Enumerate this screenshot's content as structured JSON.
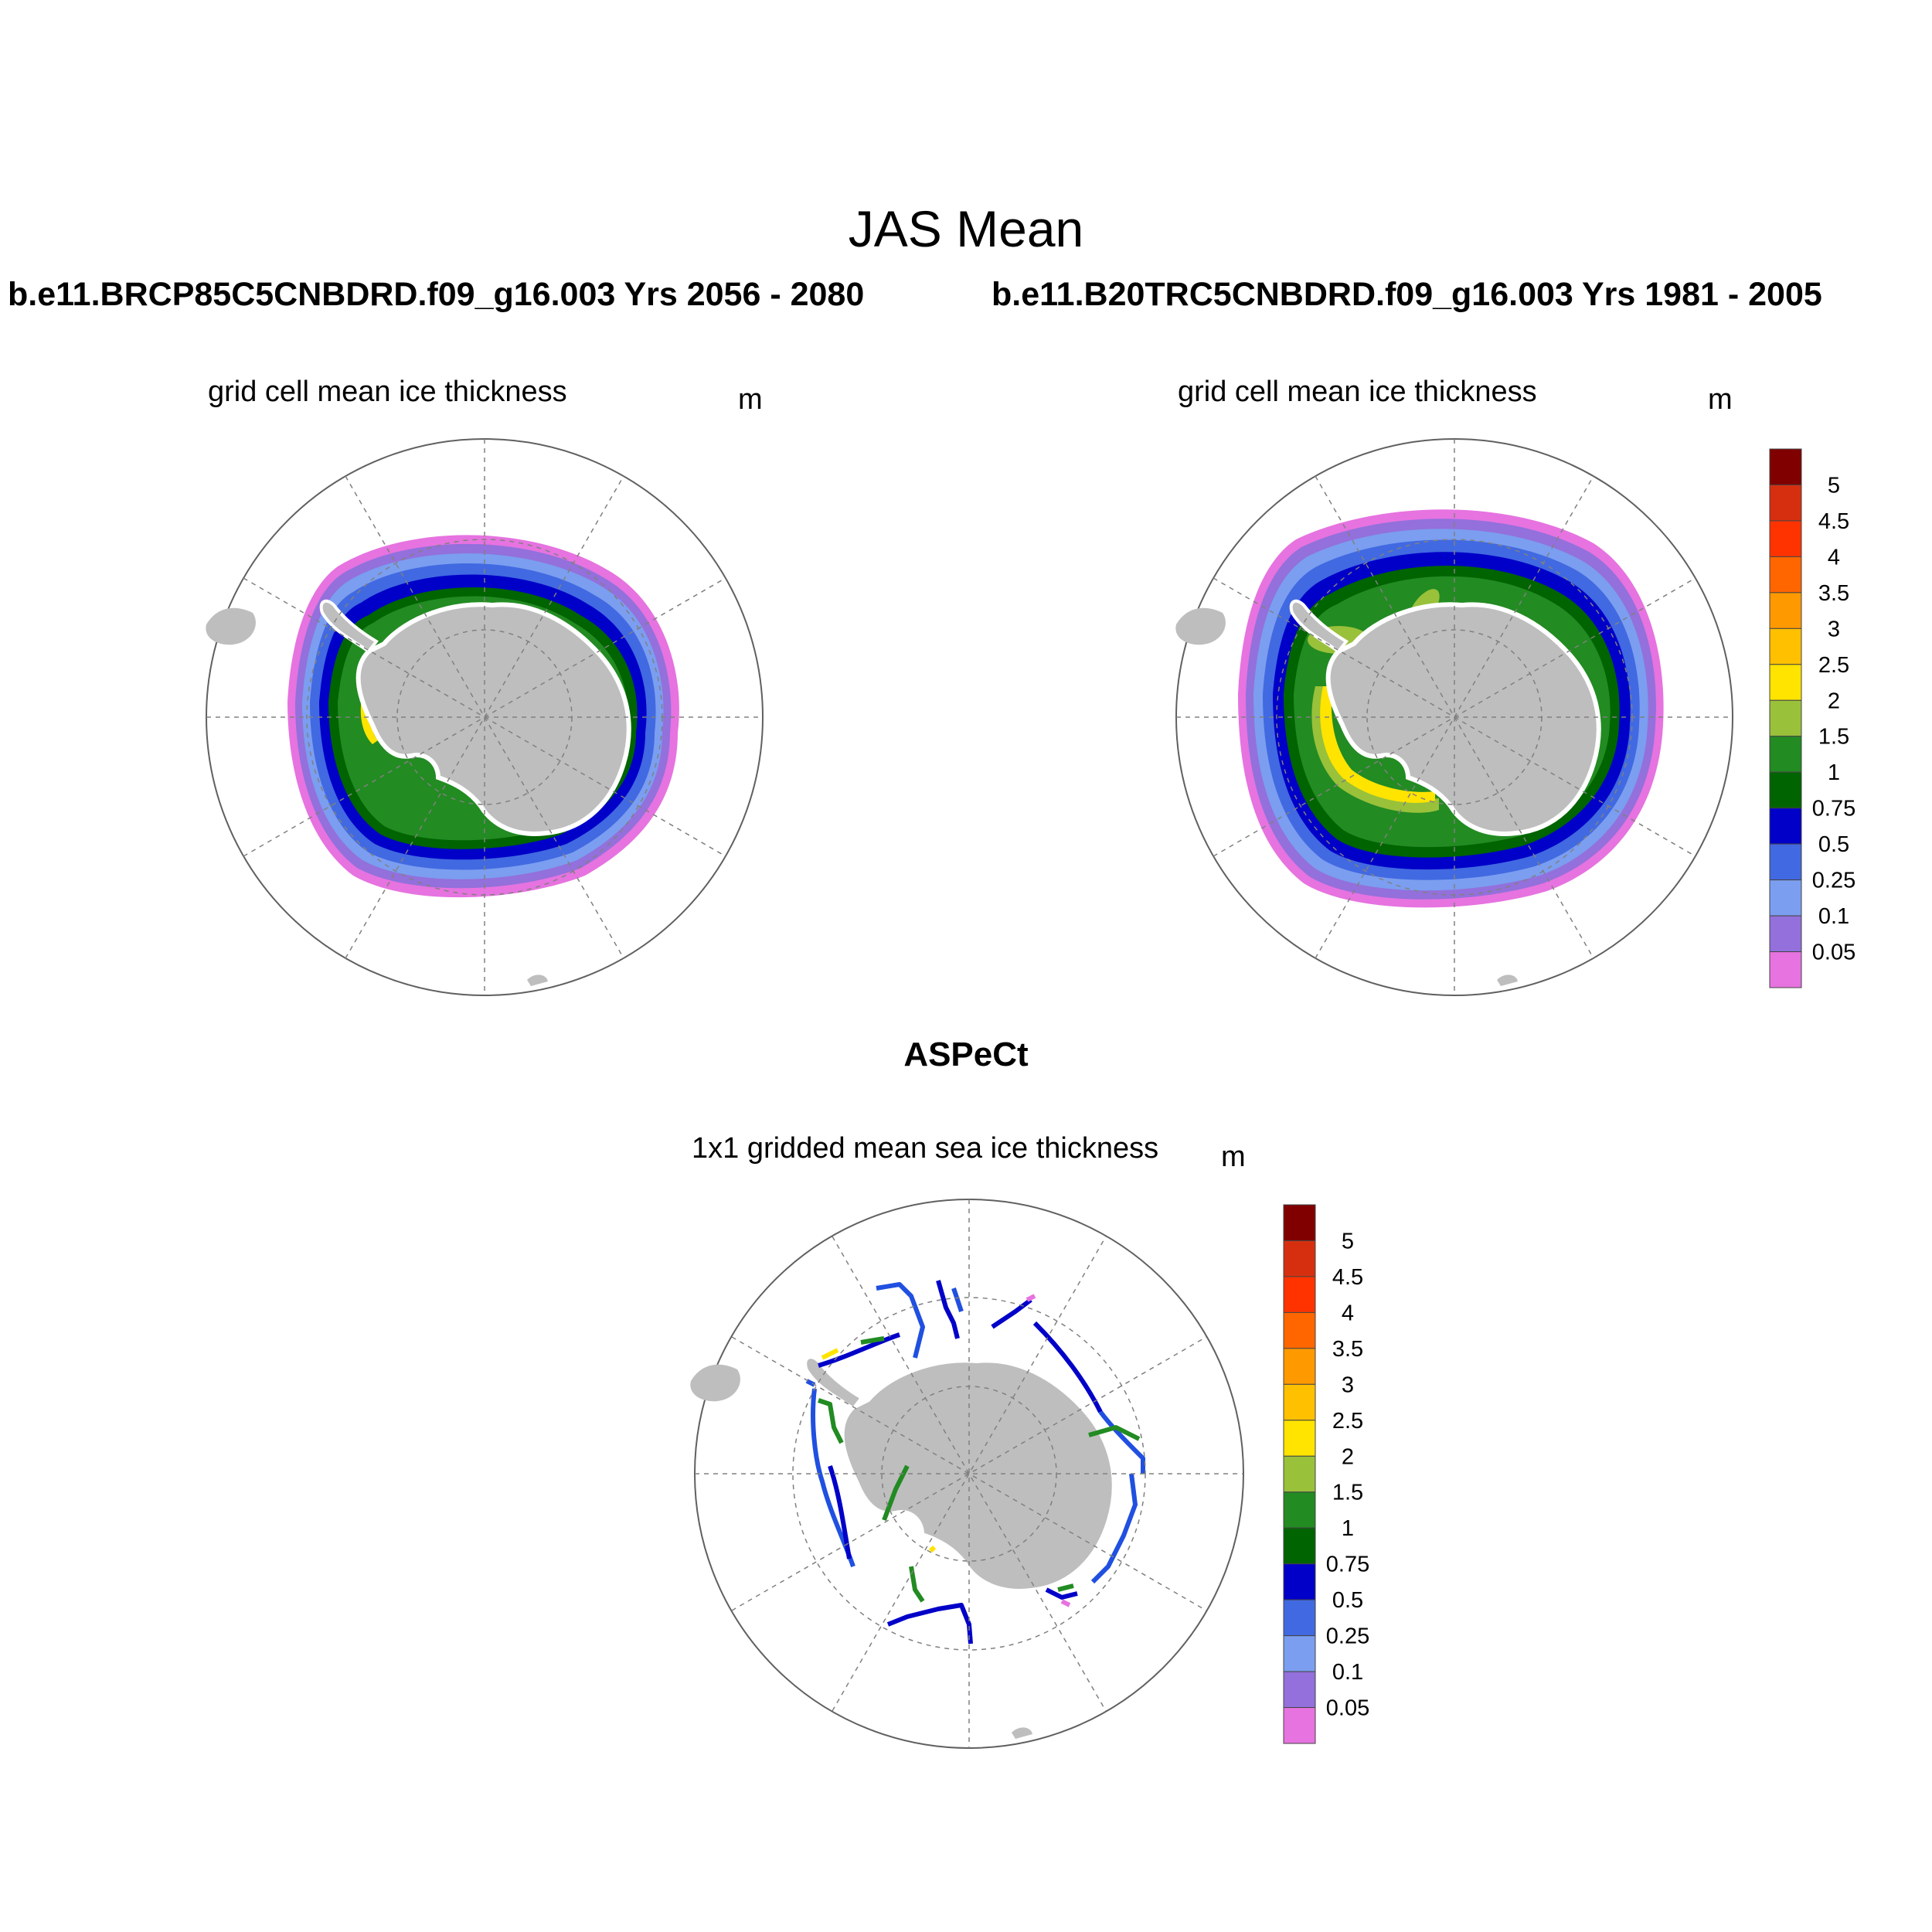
{
  "title": "JAS Mean",
  "runs": {
    "left": "b.e11.BRCP85C5CNBDRD.f09_g16.003  Yrs 2056 - 2080",
    "right": "b.e11.B20TRC5CNBDRD.f09_g16.003  Yrs 1981 - 2005"
  },
  "panels": {
    "top_left": {
      "title": "grid cell mean ice thickness",
      "unit": "m"
    },
    "top_right": {
      "title": "grid cell mean ice thickness",
      "unit": "m"
    },
    "bottom": {
      "heading": "ASPeCt",
      "title": "1x1 gridded mean sea ice thickness",
      "unit": "m"
    }
  },
  "colorbar": {
    "labels": [
      "5",
      "4.5",
      "4",
      "3.5",
      "3",
      "2.5",
      "2",
      "1.5",
      "1",
      "0.75",
      "0.5",
      "0.25",
      "0.1",
      "0.05"
    ],
    "colors": [
      "#800000",
      "#d62f10",
      "#ff3300",
      "#ff6600",
      "#ff9900",
      "#ffc000",
      "#ffe400",
      "#99c13a",
      "#228b22",
      "#006400",
      "#0000c8",
      "#4169e1",
      "#7b9ef0",
      "#9370db",
      "#e673e0"
    ]
  },
  "map_colors": {
    "land": "#bebebe",
    "open_ocean": "#ffffff",
    "grid": "#808080"
  }
}
